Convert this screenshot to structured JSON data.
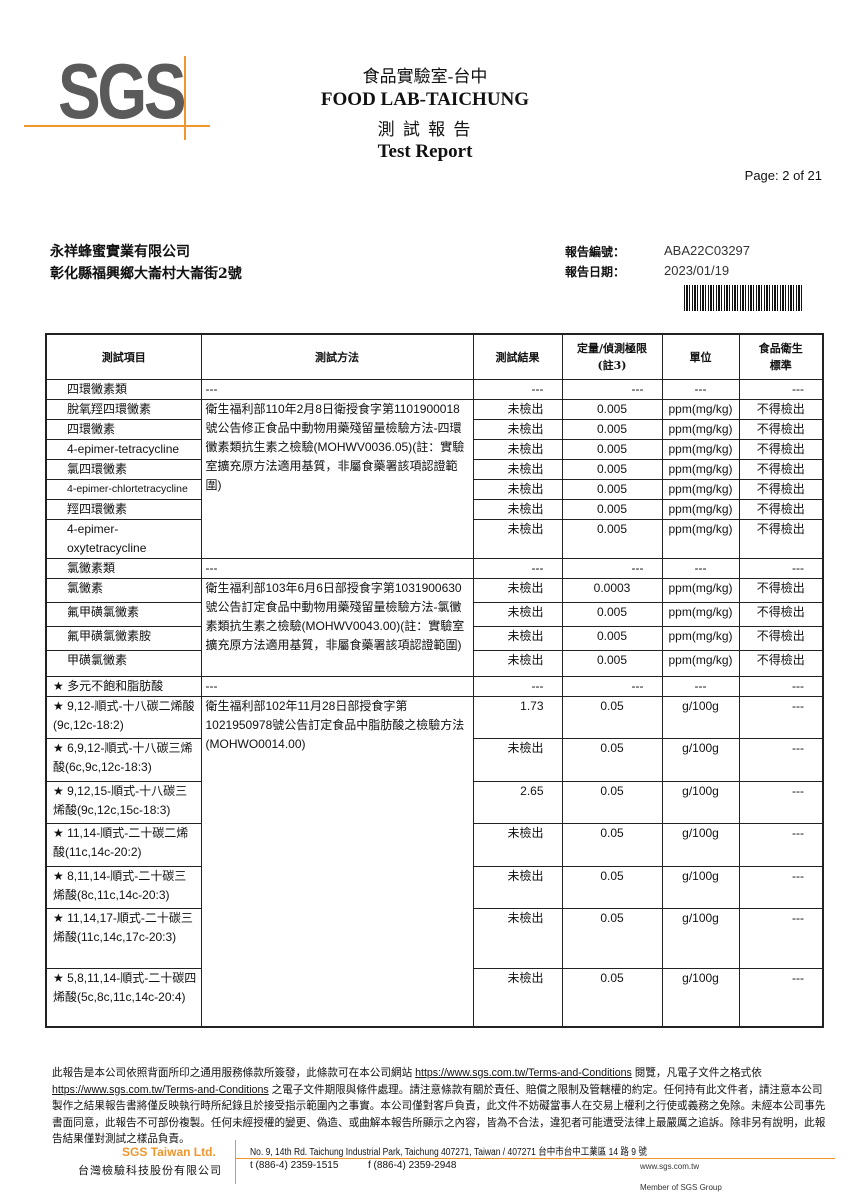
{
  "logo": {
    "text": "SGS",
    "accent": "#f0962e"
  },
  "header": {
    "lab_cn": "食品實驗室-台中",
    "lab_en": "FOOD LAB-TAICHUNG",
    "report_cn": "測 試 報 告",
    "report_en": "Test Report",
    "page": "Page: 2 of 21"
  },
  "customer": {
    "name": "永祥蜂蜜實業有限公司",
    "address": "彰化縣福興鄉大崙村大崙街2號"
  },
  "report": {
    "no_label": "報告編號：",
    "no": "ABA22C03297",
    "date_label": "報告日期：",
    "date": "2023/01/19"
  },
  "table": {
    "headers": [
      "測試項目",
      "測試方法",
      "測試結果",
      "定量/偵測極限(註3)",
      "單位",
      "食品衛生標準"
    ],
    "methods": [
      "衛生福利部110年2月8日衛授食字第1101900018號公告修正食品中動物用藥殘留量檢驗方法-四環黴素類抗生素之檢驗(MOHWV0036.05)(註：實驗室擴充原方法適用基質，非屬食藥署該項認證範圍)",
      "衛生福利部103年6月6日部授食字第1031900630號公告訂定食品中動物用藥殘留量檢驗方法-氯黴素類抗生素之檢驗(MOHWV0043.00)(註：實驗室擴充原方法適用基質，非屬食藥署該項認證範圍)",
      "衛生福利部102年11月28日部授食字第1021950978號公告訂定食品中脂肪酸之檢驗方法(MOHWO0014.00)"
    ],
    "dash": "---",
    "group1": {
      "title": "四環黴素類",
      "rows": [
        {
          "item": "脫氧羥四環黴素",
          "result": "未檢出",
          "limit": "0.005",
          "unit": "ppm(mg/kg)",
          "standard": "不得檢出"
        },
        {
          "item": "四環黴素",
          "result": "未檢出",
          "limit": "0.005",
          "unit": "ppm(mg/kg)",
          "standard": "不得檢出"
        },
        {
          "item": "4-epimer-tetracycline",
          "result": "未檢出",
          "limit": "0.005",
          "unit": "ppm(mg/kg)",
          "standard": "不得檢出"
        },
        {
          "item": "氯四環黴素",
          "result": "未檢出",
          "limit": "0.005",
          "unit": "ppm(mg/kg)",
          "standard": "不得檢出"
        },
        {
          "item": "4-epimer-chlortetracycline",
          "result": "未檢出",
          "limit": "0.005",
          "unit": "ppm(mg/kg)",
          "standard": "不得檢出"
        },
        {
          "item": "羥四環黴素",
          "result": "未檢出",
          "limit": "0.005",
          "unit": "ppm(mg/kg)",
          "standard": "不得檢出"
        },
        {
          "item": "4-epimer-oxytetracycline",
          "result": "未檢出",
          "limit": "0.005",
          "unit": "ppm(mg/kg)",
          "standard": "不得檢出"
        }
      ]
    },
    "group2": {
      "title": "氯黴素類",
      "rows": [
        {
          "item": "氯黴素",
          "result": "未檢出",
          "limit": "0.0003",
          "unit": "ppm(mg/kg)",
          "standard": "不得檢出"
        },
        {
          "item": "氟甲磺氯黴素",
          "result": "未檢出",
          "limit": "0.005",
          "unit": "ppm(mg/kg)",
          "standard": "不得檢出"
        },
        {
          "item": "氟甲磺氯黴素胺",
          "result": "未檢出",
          "limit": "0.005",
          "unit": "ppm(mg/kg)",
          "standard": "不得檢出"
        },
        {
          "item": "甲磺氯黴素",
          "result": "未檢出",
          "limit": "0.005",
          "unit": "ppm(mg/kg)",
          "standard": "不得檢出"
        }
      ]
    },
    "group3": {
      "title": "★ 多元不飽和脂肪酸",
      "rows": [
        {
          "item": "★ 9,12-順式-十八碳二烯酸(9c,12c-18:2)",
          "result": "1.73",
          "limit": "0.05",
          "unit": "g/100g",
          "standard": "---"
        },
        {
          "item": "★ 6,9,12-順式-十八碳三烯酸(6c,9c,12c-18:3)",
          "result": "未檢出",
          "limit": "0.05",
          "unit": "g/100g",
          "standard": "---"
        },
        {
          "item": "★ 9,12,15-順式-十八碳三烯酸(9c,12c,15c-18:3)",
          "result": "2.65",
          "limit": "0.05",
          "unit": "g/100g",
          "standard": "---"
        },
        {
          "item": "★ 11,14-順式-二十碳二烯酸(11c,14c-20:2)",
          "result": "未檢出",
          "limit": "0.05",
          "unit": "g/100g",
          "standard": "---"
        },
        {
          "item": "★ 8,11,14-順式-二十碳三烯酸(8c,11c,14c-20:3)",
          "result": "未檢出",
          "limit": "0.05",
          "unit": "g/100g",
          "standard": "---"
        },
        {
          "item": "★ 11,14,17-順式-二十碳三烯酸(11c,14c,17c-20:3)",
          "result": "未檢出",
          "limit": "0.05",
          "unit": "g/100g",
          "standard": "---"
        },
        {
          "item": "★ 5,8,11,14-順式-二十碳四烯酸(5c,8c,11c,14c-20:4)",
          "result": "未檢出",
          "limit": "0.05",
          "unit": "g/100g",
          "standard": "---"
        }
      ]
    }
  },
  "disclaimer": {
    "p1": "此報告是本公司依照背面所印之通用服務條款所簽發，此條款可在本公司網站 ",
    "link1": "https://www.sgs.com.tw/Terms-and-Conditions",
    "p2": " 閱覽，凡電子文件之格式依 ",
    "link2": "https://www.sgs.com.tw/Terms-and-Conditions",
    "p3": " 之電子文件期限與條件處理。請注意條款有關於責任、賠償之限制及管轄權的約定。任何持有此文件者，請注意本公司製作之結果報告書將僅反映執行時所紀錄且於接受指示範圍內之事實。本公司僅對客戶負責，此文件不妨礙當事人在交易上權利之行使或義務之免除。未經本公司事先書面同意，此報告不可部份複製。任何未經授權的變更、偽造、或曲解本報告所顯示之內容，皆為不合法，違犯者可能遭受法律上最嚴厲之追訴。除非另有說明，此報告結果僅對測試之樣品負責。"
  },
  "footer": {
    "company_en": "SGS Taiwan Ltd.",
    "company_cn": "台灣檢驗科技股份有限公司",
    "address": "No. 9, 14th Rd. Taichung Industrial Park, Taichung 407271, Taiwan / 407271 台中市台中工業區 14 路 9 號",
    "tel": "t (886-4) 2359-1515",
    "fax": "f (886-4) 2359-2948",
    "web": "www.sgs.com.tw",
    "member": "Member of SGS Group"
  }
}
